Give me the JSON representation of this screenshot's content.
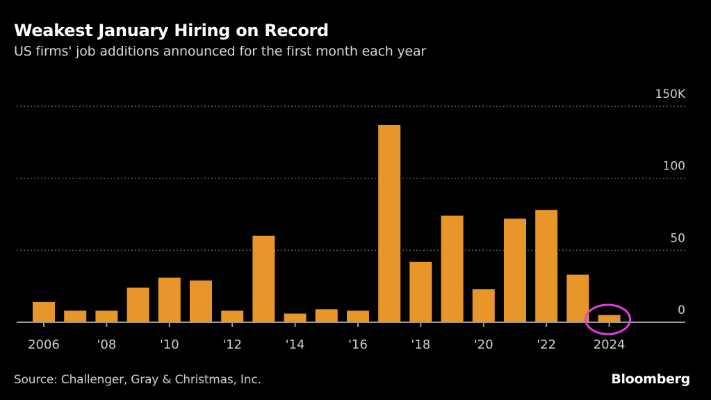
{
  "chart_data": {
    "type": "bar",
    "title": "Weakest January Hiring on Record",
    "subtitle": "US firms' job additions announced for the first month each year",
    "xlabel": "",
    "ylabel": "",
    "ylim": [
      0,
      150
    ],
    "yticks": [
      0,
      50,
      100,
      150
    ],
    "ytick_labels": [
      "0",
      "50",
      "100",
      "150K"
    ],
    "grid": true,
    "categories": [
      "2006",
      "2007",
      "2008",
      "2009",
      "2010",
      "2011",
      "2012",
      "2013",
      "2014",
      "2015",
      "2016",
      "2017",
      "2018",
      "2019",
      "2020",
      "2021",
      "2022",
      "2023",
      "2024"
    ],
    "xtick_labels": [
      {
        "category": "2006",
        "label": "2006"
      },
      {
        "category": "2008",
        "label": "'08"
      },
      {
        "category": "2010",
        "label": "'10"
      },
      {
        "category": "2012",
        "label": "'12"
      },
      {
        "category": "2014",
        "label": "'14"
      },
      {
        "category": "2016",
        "label": "'16"
      },
      {
        "category": "2018",
        "label": "'18"
      },
      {
        "category": "2020",
        "label": "'20"
      },
      {
        "category": "2022",
        "label": "'22"
      },
      {
        "category": "2024",
        "label": "2024"
      }
    ],
    "values": [
      14,
      8,
      8,
      24,
      31,
      29,
      8,
      60,
      6,
      9,
      8,
      137,
      42,
      74,
      23,
      72,
      78,
      33,
      5
    ],
    "highlight": {
      "category": "2024",
      "shape": "circle"
    },
    "colors": {
      "bar": "#e8962a",
      "highlight": "#e040e0",
      "grid": "#666666",
      "axis": "#9a9a9a",
      "tick_text": "#cfcfcf"
    }
  },
  "footer": {
    "source": "Source: Challenger, Gray & Christmas, Inc.",
    "brand": "Bloomberg"
  }
}
